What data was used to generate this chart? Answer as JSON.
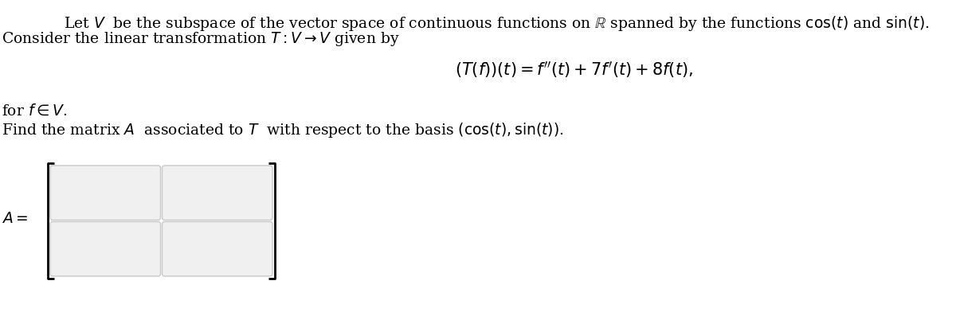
{
  "bg_color": "#ffffff",
  "text_color": "#000000",
  "box_border_color": "#c8c8c8",
  "box_fill_color": "#f0f0f0",
  "bracket_color": "#000000",
  "line1": "Let $V$  be the subspace of the vector space of continuous functions on $\\mathbb{R}$ spanned by the functions $\\cos(t)$ and $\\sin(t)$.",
  "line2": "Consider the linear transformation $T : V \\to V$ given by",
  "equation": "$(T(f))(t) = f''(t) + 7f'(t) + 8f(t),$",
  "line3": "for $f \\in V$.",
  "line4": "Find the matrix $A$  associated to $T$  with respect to the basis $(\\cos(t), \\sin(t))$.",
  "label_A": "$A =$",
  "main_fontsize": 13.5,
  "eq_fontsize": 15
}
